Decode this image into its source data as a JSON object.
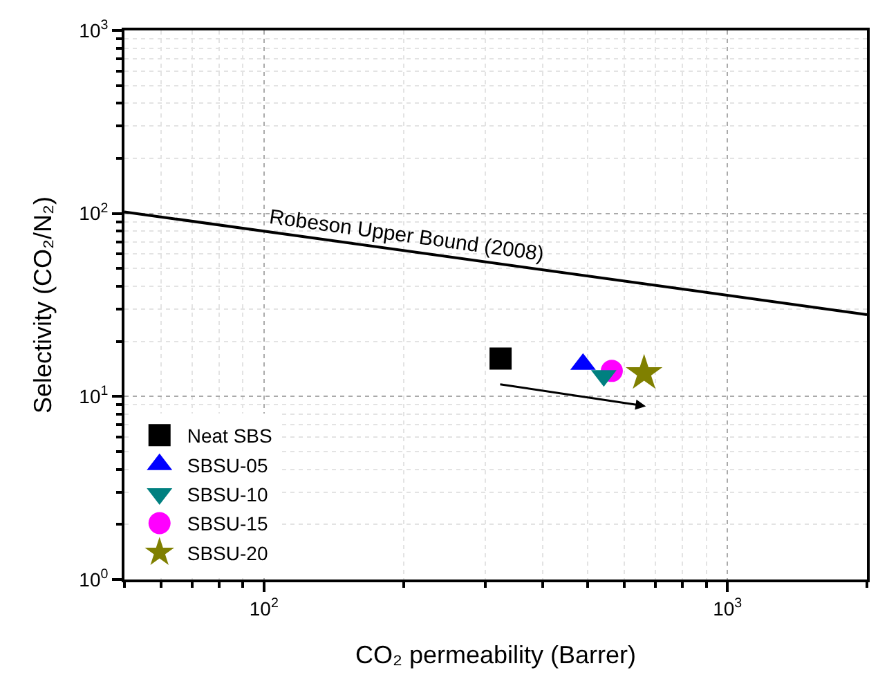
{
  "chart_data": {
    "type": "scatter",
    "xlabel": "CO₂ permeability (Barrer)",
    "ylabel": "Selectivity (CO₂/N₂)",
    "log": "xy",
    "grid": true,
    "legend": "bottom left",
    "xlim": [
      50,
      2000
    ],
    "xticks": [
      {
        "value": 100,
        "label": "10$^{2}$"
      },
      {
        "value": 1000,
        "label": "10$^{3}$"
      }
    ],
    "ylim": [
      1,
      1000
    ],
    "yticks": [
      {
        "value": 1,
        "label": "10$^{0}$"
      },
      {
        "value": 10,
        "label": "10$^{1}$"
      },
      {
        "value": 100,
        "label": "10$^{2}$"
      },
      {
        "value": 1000,
        "label": "10$^{3}$"
      }
    ],
    "series": [
      {
        "name": "Robeson Upper Bound (2008)",
        "type": "line",
        "color": "#000000",
        "line_style": "solid",
        "marker": "none",
        "x": [
          50,
          2000
        ],
        "values": [
          102,
          28
        ]
      },
      {
        "name": "Neat SBS",
        "color": "#000000",
        "marker": "square",
        "x": [
          324
        ],
        "values": [
          16.1
        ]
      },
      {
        "name": "SBSU-05",
        "color": "#0000ff",
        "marker": "triangle",
        "x": [
          488
        ],
        "values": [
          15.0
        ]
      },
      {
        "name": "SBSU-10",
        "color": "#008080",
        "marker": "triangle-down",
        "x": [
          541
        ],
        "values": [
          13.0
        ]
      },
      {
        "name": "SBSU-15",
        "color": "#ff00ff",
        "marker": "circle",
        "x": [
          563
        ],
        "values": [
          13.8
        ]
      },
      {
        "name": "SBSU-20",
        "color": "#808000",
        "marker": "star",
        "x": [
          661
        ],
        "values": [
          13.4
        ]
      }
    ]
  }
}
